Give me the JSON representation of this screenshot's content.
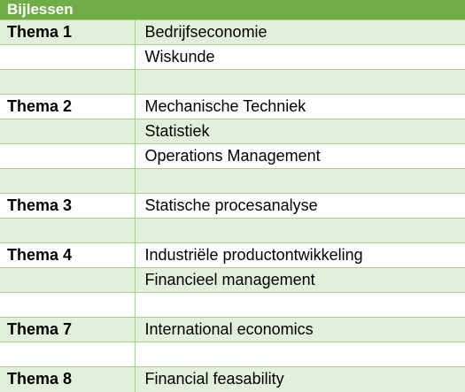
{
  "header": {
    "title": "Bijlessen"
  },
  "colors": {
    "header_bg": "#70ad47",
    "band": "#e2efda",
    "border": "#a9d08e"
  },
  "rows": [
    {
      "thema": "Thema 1",
      "course": "Bedrijfseconomie"
    },
    {
      "thema": "",
      "course": "Wiskunde"
    },
    {
      "thema": "",
      "course": ""
    },
    {
      "thema": "Thema 2",
      "course": "Mechanische Techniek"
    },
    {
      "thema": "",
      "course": "Statistiek"
    },
    {
      "thema": "",
      "course": "Operations Management"
    },
    {
      "thema": "",
      "course": ""
    },
    {
      "thema": "Thema 3",
      "course": "Statische procesanalyse"
    },
    {
      "thema": "",
      "course": ""
    },
    {
      "thema": "Thema 4",
      "course": "Industriële productontwikkeling"
    },
    {
      "thema": "",
      "course": "Financieel management"
    },
    {
      "thema": "",
      "course": ""
    },
    {
      "thema": "Thema 7",
      "course": "International economics"
    },
    {
      "thema": "",
      "course": ""
    },
    {
      "thema": "Thema 8",
      "course": "Financial feasability"
    }
  ]
}
